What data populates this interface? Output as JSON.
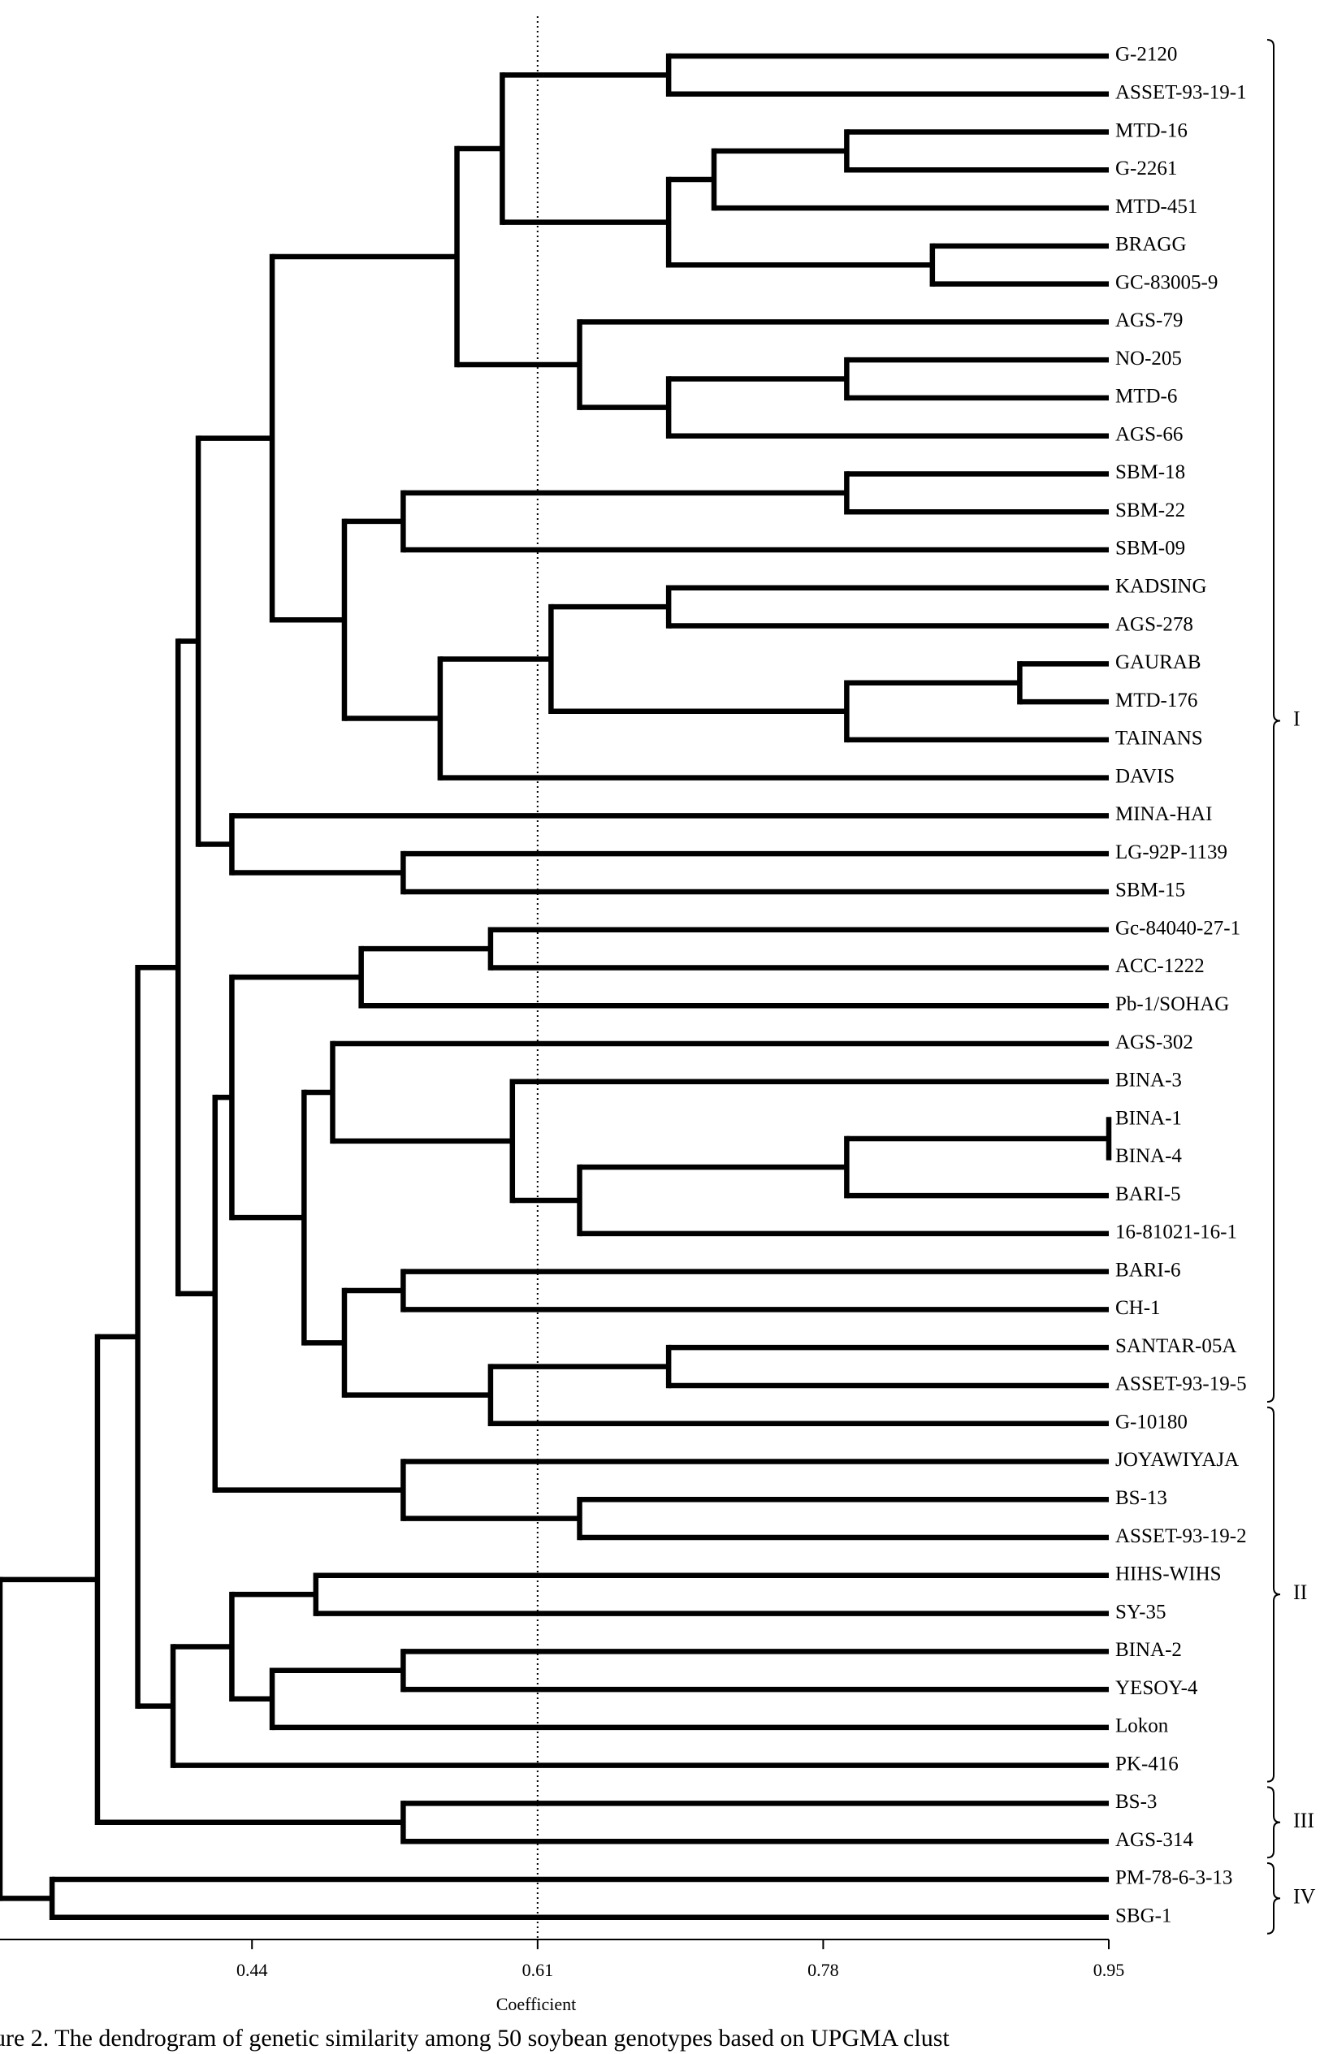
{
  "chart_data": {
    "type": "dendrogram",
    "x_label": "Coefficient",
    "caption": "ure 2. The dendrogram of genetic similarity among 50 soybean genotypes based on UPGMA clust",
    "xlim": [
      0.29,
      0.95
    ],
    "xticks": [
      0.44,
      0.61,
      0.78,
      0.95
    ],
    "cutoff_line": 0.61,
    "leaves": [
      "G-2120",
      "ASSET-93-19-1",
      "MTD-16",
      "G-2261",
      "MTD-451",
      "BRAGG",
      "GC-83005-9",
      "AGS-79",
      "NO-205",
      "MTD-6",
      "AGS-66",
      "SBM-18",
      "SBM-22",
      "SBM-09",
      "KADSING",
      "AGS-278",
      "GAURAB",
      "MTD-176",
      "TAINANS",
      "DAVIS",
      "MINA-HAI",
      "LG-92P-1139",
      "SBM-15",
      "Gc-84040-27-1",
      "ACC-1222",
      "Pb-1/SOHAG",
      "AGS-302",
      "BINA-3",
      "BINA-1",
      "BINA-4",
      "BARI-5",
      "16-81021-16-1",
      "BARI-6",
      "CH-1",
      "SANTAR-05A",
      "ASSET-93-19-5",
      "G-10180",
      "JOYAWIYAJA",
      "BS-13",
      "ASSET-93-19-2",
      "HIHS-WIHS",
      "SY-35",
      "BINA-2",
      "YESOY-4",
      "Lokon",
      "PK-416",
      "BS-3",
      "AGS-314",
      "PM-78-6-3-13",
      "SBG-1"
    ],
    "merges": [
      [
        0,
        1,
        0.688
      ],
      [
        2,
        3,
        0.794
      ],
      [
        51,
        4,
        0.715
      ],
      [
        5,
        6,
        0.845
      ],
      [
        52,
        53,
        0.688
      ],
      [
        50,
        54,
        0.589
      ],
      [
        8,
        9,
        0.794
      ],
      [
        56,
        10,
        0.688
      ],
      [
        7,
        57,
        0.635
      ],
      [
        55,
        58,
        0.562
      ],
      [
        11,
        12,
        0.794
      ],
      [
        60,
        13,
        0.53
      ],
      [
        14,
        15,
        0.688
      ],
      [
        16,
        17,
        0.897
      ],
      [
        63,
        18,
        0.794
      ],
      [
        62,
        64,
        0.618
      ],
      [
        65,
        19,
        0.552
      ],
      [
        61,
        66,
        0.495
      ],
      [
        59,
        67,
        0.452
      ],
      [
        21,
        22,
        0.53
      ],
      [
        20,
        69,
        0.428
      ],
      [
        68,
        70,
        0.408
      ],
      [
        23,
        24,
        0.582
      ],
      [
        72,
        25,
        0.505
      ],
      [
        28,
        29,
        0.95
      ],
      [
        74,
        30,
        0.794
      ],
      [
        75,
        31,
        0.635
      ],
      [
        27,
        76,
        0.595
      ],
      [
        26,
        77,
        0.488
      ],
      [
        32,
        33,
        0.53
      ],
      [
        34,
        35,
        0.688
      ],
      [
        80,
        36,
        0.582
      ],
      [
        79,
        81,
        0.495
      ],
      [
        78,
        82,
        0.471
      ],
      [
        73,
        83,
        0.428
      ],
      [
        38,
        39,
        0.635
      ],
      [
        37,
        85,
        0.53
      ],
      [
        84,
        86,
        0.418
      ],
      [
        71,
        87,
        0.396
      ],
      [
        40,
        41,
        0.478
      ],
      [
        42,
        43,
        0.53
      ],
      [
        90,
        44,
        0.452
      ],
      [
        89,
        91,
        0.428
      ],
      [
        92,
        45,
        0.393
      ],
      [
        88,
        93,
        0.372
      ],
      [
        46,
        47,
        0.53
      ],
      [
        94,
        95,
        0.348
      ],
      [
        48,
        49,
        0.321
      ],
      [
        96,
        97,
        0.29
      ]
    ],
    "clusters": [
      {
        "label": "I",
        "first": 0,
        "last": 35
      },
      {
        "label": "II",
        "first": 36,
        "last": 45
      },
      {
        "label": "III",
        "first": 46,
        "last": 47
      },
      {
        "label": "IV",
        "first": 48,
        "last": 49
      }
    ]
  }
}
